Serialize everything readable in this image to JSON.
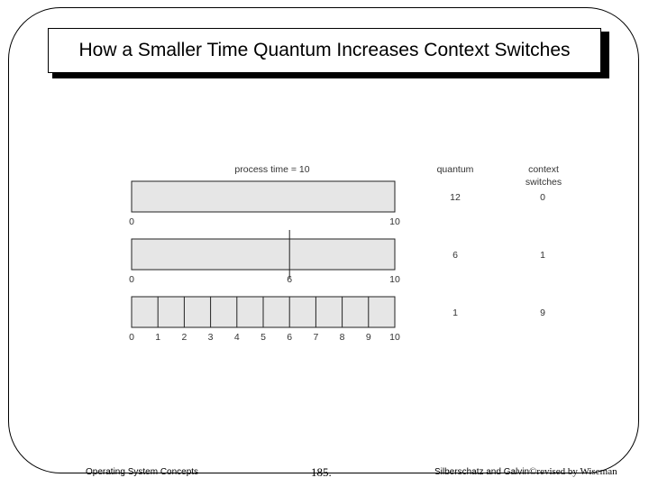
{
  "slide": {
    "title": "How a Smaller Time Quantum Increases Context Switches",
    "footer_left": "Operating System Concepts",
    "footer_page": "185.",
    "footer_right_authors": "Silberschatz and Galvin",
    "footer_right_sep": "©",
    "footer_right_revised": "revised by Wiseman"
  },
  "diagram": {
    "caption": "process time = 10",
    "header_quantum": "quantum",
    "header_switches_line1": "context",
    "header_switches_line2": "switches",
    "process_time": 10,
    "rows": [
      {
        "quantum": 12,
        "switches": 0,
        "quantum_label": "12",
        "switches_label": "0",
        "ticks": [
          "0",
          "10"
        ]
      },
      {
        "quantum": 6,
        "switches": 1,
        "quantum_label": "6",
        "switches_label": "1",
        "ticks": [
          "0",
          "6",
          "10"
        ]
      },
      {
        "quantum": 1,
        "switches": 9,
        "quantum_label": "1",
        "switches_label": "9",
        "ticks": [
          "0",
          "1",
          "2",
          "3",
          "4",
          "5",
          "6",
          "7",
          "8",
          "9",
          "10"
        ]
      }
    ]
  },
  "colors": {
    "bar_fill": "#e6e6e6",
    "bar_stroke": "#222222",
    "text": "#333333"
  }
}
